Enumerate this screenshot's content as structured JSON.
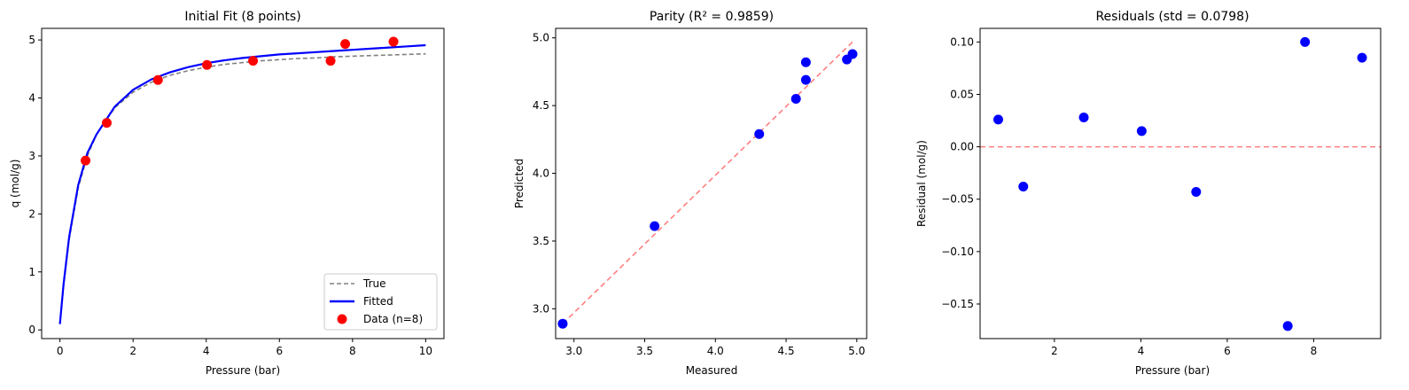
{
  "chart_data": [
    {
      "type": "line",
      "title": "Initial Fit (8 points)",
      "xlabel": "Pressure (bar)",
      "ylabel": "q (mol/g)",
      "xlim": [
        -0.5,
        10.5
      ],
      "ylim": [
        -0.15,
        5.2
      ],
      "xticks": [
        0,
        2,
        4,
        6,
        8,
        10
      ],
      "yticks": [
        0,
        1,
        2,
        3,
        4,
        5
      ],
      "grid": false,
      "legend_position": "lower-right",
      "series": [
        {
          "name": "True",
          "kind": "line",
          "style": "dashed",
          "color": "#808080",
          "x": [
            0,
            0.1,
            0.25,
            0.5,
            0.75,
            1,
            1.5,
            2,
            2.5,
            3,
            3.5,
            4,
            4.5,
            5,
            5.5,
            6,
            6.5,
            7,
            7.5,
            8,
            8.5,
            9,
            9.5,
            10
          ],
          "y": [
            0.1,
            0.75,
            1.55,
            2.45,
            3.0,
            3.37,
            3.83,
            4.1,
            4.27,
            4.39,
            4.47,
            4.53,
            4.58,
            4.61,
            4.64,
            4.66,
            4.68,
            4.69,
            4.71,
            4.72,
            4.73,
            4.74,
            4.75,
            4.76
          ]
        },
        {
          "name": "Fitted",
          "kind": "line",
          "style": "solid",
          "color": "#0000ff",
          "x": [
            0,
            0.1,
            0.25,
            0.5,
            0.75,
            1,
            1.5,
            2,
            2.5,
            3,
            3.5,
            4,
            4.5,
            5,
            5.5,
            6,
            6.5,
            7,
            7.5,
            8,
            8.5,
            9,
            9.5,
            10
          ],
          "y": [
            0.1,
            0.8,
            1.6,
            2.5,
            3.05,
            3.37,
            3.85,
            4.14,
            4.32,
            4.44,
            4.53,
            4.6,
            4.65,
            4.69,
            4.72,
            4.75,
            4.77,
            4.79,
            4.81,
            4.83,
            4.85,
            4.87,
            4.89,
            4.91
          ]
        },
        {
          "name": "Data (n=8)",
          "kind": "scatter",
          "color": "#ff0000",
          "x": [
            0.7,
            1.28,
            2.68,
            4.02,
            5.28,
            7.4,
            7.8,
            9.12
          ],
          "y": [
            2.92,
            3.57,
            4.31,
            4.57,
            4.64,
            4.64,
            4.93,
            4.97
          ]
        }
      ]
    },
    {
      "type": "scatter",
      "title": "Parity (R² = 0.9859)",
      "xlabel": "Measured",
      "ylabel": "Predicted",
      "xlim": [
        2.87,
        5.07
      ],
      "ylim": [
        2.78,
        5.07
      ],
      "xticks": [
        3.0,
        3.5,
        4.0,
        4.5,
        5.0
      ],
      "yticks": [
        3.0,
        3.5,
        4.0,
        4.5,
        5.0
      ],
      "tick_labels": [
        "3.0",
        "3.5",
        "4.0",
        "4.5",
        "5.0"
      ],
      "grid": false,
      "reference_line": {
        "x": [
          2.92,
          4.97
        ],
        "y": [
          2.89,
          4.97
        ],
        "style": "dashed",
        "color": "#ff7f7f"
      },
      "series": [
        {
          "kind": "scatter",
          "color": "#0000ff",
          "x": [
            2.92,
            3.57,
            4.31,
            4.57,
            4.64,
            4.64,
            4.93,
            4.97
          ],
          "y": [
            2.89,
            3.61,
            4.29,
            4.55,
            4.69,
            4.82,
            4.84,
            4.88
          ]
        }
      ]
    },
    {
      "type": "scatter",
      "title": "Residuals (std = 0.0798)",
      "xlabel": "Pressure (bar)",
      "ylabel": "Residual (mol/g)",
      "xlim": [
        0.28,
        9.55
      ],
      "ylim": [
        -0.183,
        0.113
      ],
      "xticks": [
        2,
        4,
        6,
        8
      ],
      "yticks": [
        0.1,
        0.05,
        0.0,
        -0.05,
        -0.1,
        -0.15
      ],
      "tick_labels": [
        "0.10",
        "0.05",
        "0.00",
        "−0.05",
        "−0.10",
        "−0.15"
      ],
      "grid": false,
      "reference_line": {
        "y": 0,
        "style": "dashed",
        "color": "#ff7f7f"
      },
      "series": [
        {
          "kind": "scatter",
          "color": "#0000ff",
          "x": [
            0.7,
            1.28,
            2.68,
            4.02,
            5.28,
            7.4,
            7.8,
            9.12
          ],
          "y": [
            0.026,
            -0.038,
            0.028,
            0.015,
            -0.043,
            -0.171,
            0.1,
            0.085
          ]
        }
      ]
    }
  ]
}
